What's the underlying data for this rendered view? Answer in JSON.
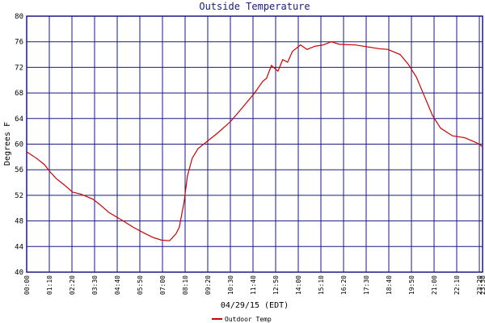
{
  "chart_data": {
    "type": "line",
    "title": "Outside Temperature",
    "ylabel": "Degrees F",
    "xlabel": "04/29/15 (EDT)",
    "x": [
      0,
      30,
      55,
      70,
      92,
      117,
      142,
      167,
      205,
      230,
      255,
      292,
      330,
      367,
      392,
      417,
      442,
      462,
      472,
      487,
      497,
      512,
      530,
      555,
      592,
      630,
      667,
      705,
      730,
      742,
      757,
      777,
      792,
      807,
      822,
      847,
      867,
      892,
      917,
      942,
      967,
      1017,
      1055,
      1092,
      1117,
      1155,
      1180,
      1205,
      1230,
      1255,
      1280,
      1317,
      1355,
      1392,
      1410
    ],
    "series": [
      {
        "name": "Outdoor Temp",
        "color": "#cc0000",
        "values": [
          58.8,
          57.8,
          56.8,
          55.8,
          54.6,
          53.6,
          52.5,
          52.2,
          51.4,
          50.4,
          49.3,
          48.2,
          47,
          46,
          45.4,
          45,
          44.9,
          46,
          47,
          51,
          55,
          57.8,
          59.3,
          60.3,
          61.8,
          63.5,
          65.7,
          68,
          69.8,
          70.3,
          72.3,
          71.4,
          73.2,
          72.8,
          74.5,
          75.5,
          74.8,
          75.3,
          75.5,
          76,
          75.6,
          75.5,
          75.2,
          74.9,
          74.8,
          74,
          72.5,
          70.5,
          67.5,
          64.5,
          62.5,
          61.3,
          61,
          60.2,
          59.6
        ]
      }
    ],
    "xlim": [
      0,
      1410
    ],
    "xticks": [
      {
        "value": 0,
        "label": "00:00"
      },
      {
        "value": 70,
        "label": "01:10"
      },
      {
        "value": 140,
        "label": "02:20"
      },
      {
        "value": 210,
        "label": "03:30"
      },
      {
        "value": 280,
        "label": "04:40"
      },
      {
        "value": 350,
        "label": "05:50"
      },
      {
        "value": 420,
        "label": "07:00"
      },
      {
        "value": 490,
        "label": "08:10"
      },
      {
        "value": 560,
        "label": "09:20"
      },
      {
        "value": 630,
        "label": "10:30"
      },
      {
        "value": 700,
        "label": "11:40"
      },
      {
        "value": 770,
        "label": "12:50"
      },
      {
        "value": 840,
        "label": "14:00"
      },
      {
        "value": 910,
        "label": "15:10"
      },
      {
        "value": 980,
        "label": "16:20"
      },
      {
        "value": 1050,
        "label": "17:30"
      },
      {
        "value": 1120,
        "label": "18:40"
      },
      {
        "value": 1190,
        "label": "19:50"
      },
      {
        "value": 1260,
        "label": "21:00"
      },
      {
        "value": 1330,
        "label": "22:10"
      },
      {
        "value": 1400,
        "label": "23:20"
      },
      {
        "value": 1410,
        "label": "23:30"
      }
    ],
    "ylim": [
      40,
      80
    ],
    "yticks": [
      40,
      44,
      48,
      52,
      56,
      60,
      64,
      68,
      72,
      76,
      80
    ],
    "grid": true,
    "grid_color": "#1a1a80"
  }
}
